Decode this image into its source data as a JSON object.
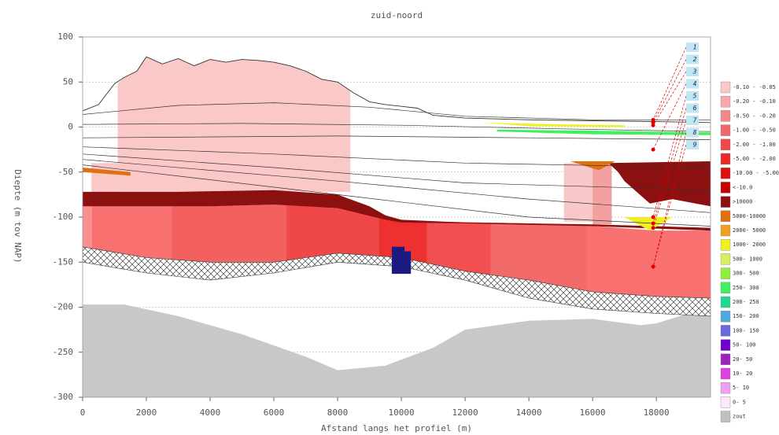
{
  "chart_data": {
    "type": "cross-section",
    "title": "zuid-noord",
    "x_label": "Afstand langs het profiel (m)",
    "y_label": "Diepte (m tov NAP)",
    "xlim": [
      0,
      19700
    ],
    "ylim": [
      -300,
      100
    ],
    "xticks": [
      0,
      2000,
      4000,
      6000,
      8000,
      10000,
      12000,
      14000,
      16000,
      18000
    ],
    "yticks": [
      100,
      50,
      0,
      -50,
      -100,
      -150,
      -200,
      -250,
      -300
    ],
    "grid": true,
    "legend": [
      {
        "label": "-0.10 - -0.05",
        "color": "#fbc8c8"
      },
      {
        "label": "-0.20 - -0.10",
        "color": "#f8a8a8"
      },
      {
        "label": "-0.50 - -0.20",
        "color": "#f48888"
      },
      {
        "label": "-1.00 - -0.50",
        "color": "#f06868"
      },
      {
        "label": "-2.00 - -1.00",
        "color": "#ee4848"
      },
      {
        "label": "-5.00 - -2.00",
        "color": "#ea2828"
      },
      {
        "label": "-10.00 - -5.00",
        "color": "#e01010"
      },
      {
        "label": "<-10.0",
        "color": "#c80000"
      },
      {
        "label": ">10000",
        "color": "#8b1010"
      },
      {
        "label": "5000-10000",
        "color": "#e07010"
      },
      {
        "label": "2000- 5000",
        "color": "#f0a020"
      },
      {
        "label": "1000- 2000",
        "color": "#f0f020"
      },
      {
        "label": "500- 1000",
        "color": "#d8f060"
      },
      {
        "label": "300- 500",
        "color": "#90f040"
      },
      {
        "label": "250- 300",
        "color": "#40f060"
      },
      {
        "label": "200- 250",
        "color": "#20d890"
      },
      {
        "label": "150- 200",
        "color": "#50a8e0"
      },
      {
        "label": "100- 150",
        "color": "#6868e0"
      },
      {
        "label": "50- 100",
        "color": "#7000d0"
      },
      {
        "label": "20- 50",
        "color": "#a020c0"
      },
      {
        "label": "10- 20",
        "color": "#e040e0"
      },
      {
        "label": "5- 10",
        "color": "#f0a0f0"
      },
      {
        "label": "0- 5",
        "color": "#fce8f8"
      },
      {
        "label": "zout",
        "color": "#c0c0c0"
      }
    ],
    "polygons": [
      {
        "color": "#c8c8c8",
        "x": [
          0,
          1300,
          3000,
          5000,
          7000,
          8000,
          9500,
          11000,
          12000,
          14000,
          16000,
          17500,
          18000,
          19000,
          19700,
          19700,
          0
        ],
        "y": [
          -197,
          -197,
          -210,
          -230,
          -255,
          -270,
          -265,
          -245,
          -225,
          -215,
          -213,
          -220,
          -218,
          -207,
          -205,
          -300,
          -300
        ]
      },
      {
        "color": "#fbc8c8",
        "x": [
          1100,
          1300,
          1700,
          2000,
          2500,
          3000,
          3500,
          4000,
          4500,
          5000,
          5500,
          6000,
          6500,
          7000,
          7500,
          8000,
          8400,
          8400,
          1100
        ],
        "y": [
          48,
          55,
          62,
          78,
          70,
          76,
          68,
          75,
          72,
          75,
          74,
          72,
          68,
          62,
          53,
          50,
          40,
          -72,
          -72
        ]
      },
      {
        "color": "#fbc8c8",
        "x": [
          280,
          1100,
          1100,
          280
        ],
        "y": [
          -40,
          -40,
          -85,
          -85
        ]
      },
      {
        "color": "#f8c8c8",
        "x": [
          15100,
          16000,
          16000,
          15100
        ],
        "y": [
          -40,
          -40,
          -105,
          -105
        ]
      },
      {
        "color": "#f4a0a0",
        "x": [
          16000,
          16600,
          16600,
          16000
        ],
        "y": [
          -40,
          -40,
          -108,
          -108
        ]
      },
      {
        "color": "#f06060",
        "x": [
          0,
          2000,
          4000,
          6000,
          8000,
          9500,
          11000,
          14000,
          16000,
          18000,
          19700,
          19700,
          18000,
          16000,
          14000,
          12000,
          10000,
          8000,
          6000,
          4000,
          2000,
          0
        ],
        "y": [
          -88,
          -88,
          -88,
          -86,
          -88,
          -103,
          -105,
          -107,
          -110,
          -115,
          -115,
          -190,
          -188,
          -183,
          -170,
          -160,
          -145,
          -140,
          -150,
          -150,
          -145,
          -133
        ],
        "bands": {
          "edges": [
            0,
            300,
            2800,
            6400,
            9300,
            10800,
            12800,
            15800,
            19700
          ],
          "colors": [
            "#f89090",
            "#f87070",
            "#f26060",
            "#f04848",
            "#ee3030",
            "#f25050",
            "#f26a6a",
            "#f87070"
          ]
        }
      },
      {
        "color": "#ffffff",
        "pattern": "hatch",
        "x": [
          0,
          2000,
          4000,
          6000,
          8000,
          10000,
          12000,
          14000,
          16000,
          18000,
          19700,
          19700,
          18000,
          16000,
          14000,
          12000,
          10000,
          8000,
          6000,
          4000,
          2000,
          0
        ],
        "y": [
          -133,
          -145,
          -150,
          -150,
          -140,
          -145,
          -160,
          -170,
          -183,
          -188,
          -190,
          -210,
          -207,
          -202,
          -190,
          -170,
          -155,
          -150,
          -162,
          -170,
          -162,
          -150
        ]
      },
      {
        "color": "#8b1010",
        "x": [
          0,
          3000,
          6000,
          8000,
          9000,
          9500,
          10000,
          12000,
          16000,
          19700,
          19700,
          16000,
          12000,
          10000,
          9500,
          8000,
          6000,
          4000,
          0
        ],
        "y": [
          -72,
          -72,
          -70,
          -75,
          -88,
          -98,
          -103,
          -106,
          -108,
          -112,
          -115,
          -110,
          -107,
          -106,
          -103,
          -90,
          -86,
          -88,
          -88
        ]
      },
      {
        "color": "#8b1010",
        "x": [
          16500,
          19700,
          19700,
          18500,
          17800,
          17000,
          16800
        ],
        "y": [
          -40,
          -38,
          -88,
          -80,
          -85,
          -60,
          -50
        ]
      },
      {
        "color": "#e07010",
        "x": [
          0,
          1500,
          1500,
          0
        ],
        "y": [
          -45,
          -50,
          -54,
          -50
        ]
      },
      {
        "color": "#e07010",
        "x": [
          15300,
          16200,
          16700
        ],
        "y": [
          -38,
          -48,
          -38
        ]
      },
      {
        "color": "#f0f020",
        "x": [
          17000,
          18500,
          17800
        ],
        "y": [
          -100,
          -100,
          -115
        ]
      },
      {
        "color": "#f0f020",
        "x": [
          12500,
          15000,
          17000,
          17000,
          14000
        ],
        "y": [
          5,
          3,
          2,
          0,
          1
        ]
      },
      {
        "color": "#40f060",
        "x": [
          13000,
          16000,
          19700,
          19700,
          16000,
          13000
        ],
        "y": [
          -3,
          -4,
          -6,
          -9,
          -8,
          -5
        ]
      },
      {
        "color": "#1a1a80",
        "x": [
          9700,
          10100,
          10100,
          10300,
          10300,
          9700
        ],
        "y": [
          -133,
          -133,
          -138,
          -138,
          -163,
          -163
        ]
      }
    ],
    "lines": [
      {
        "x": [
          0,
          3000,
          6000,
          9000,
          12000,
          16000,
          19700
        ],
        "y": [
          14,
          24,
          27,
          22,
          12,
          8,
          8
        ]
      },
      {
        "x": [
          0,
          5000,
          10000,
          15000,
          19700
        ],
        "y": [
          3,
          4,
          2,
          -2,
          -5
        ]
      },
      {
        "x": [
          0,
          8000,
          14000,
          19700
        ],
        "y": [
          -12,
          -10,
          -12,
          -14
        ]
      },
      {
        "x": [
          0,
          6000,
          12000,
          19700
        ],
        "y": [
          -22,
          -30,
          -40,
          -45
        ]
      },
      {
        "x": [
          0,
          6000,
          12000,
          19700
        ],
        "y": [
          -30,
          -45,
          -62,
          -70
        ]
      },
      {
        "x": [
          0,
          8000,
          14000,
          19700
        ],
        "y": [
          -36,
          -60,
          -80,
          -95
        ]
      },
      {
        "x": [
          0,
          8000,
          14000,
          19700
        ],
        "y": [
          -42,
          -75,
          -100,
          -110
        ]
      }
    ],
    "surface": {
      "x": [
        0,
        500,
        1000,
        1300,
        1700,
        2000,
        2500,
        3000,
        3500,
        4000,
        4500,
        5000,
        5500,
        6000,
        6500,
        7000,
        7500,
        8000,
        8500,
        9000,
        9500,
        10000,
        10500,
        11000,
        12000,
        14000,
        16000,
        18000,
        19700
      ],
      "y": [
        18,
        25,
        48,
        55,
        62,
        78,
        70,
        76,
        68,
        75,
        72,
        75,
        74,
        72,
        68,
        62,
        53,
        50,
        38,
        28,
        25,
        23,
        21,
        13,
        10,
        8,
        7,
        6,
        5
      ]
    },
    "points": {
      "color": "#e00000",
      "x": [
        17900,
        17900,
        17900,
        17900,
        17900,
        17900,
        17900,
        17900
      ],
      "y": [
        8,
        5,
        2,
        -25,
        -100,
        -107,
        -112,
        -155
      ]
    },
    "markers": [
      "1",
      "2",
      "3",
      "4",
      "5",
      "6",
      "7",
      "8",
      "9"
    ]
  }
}
